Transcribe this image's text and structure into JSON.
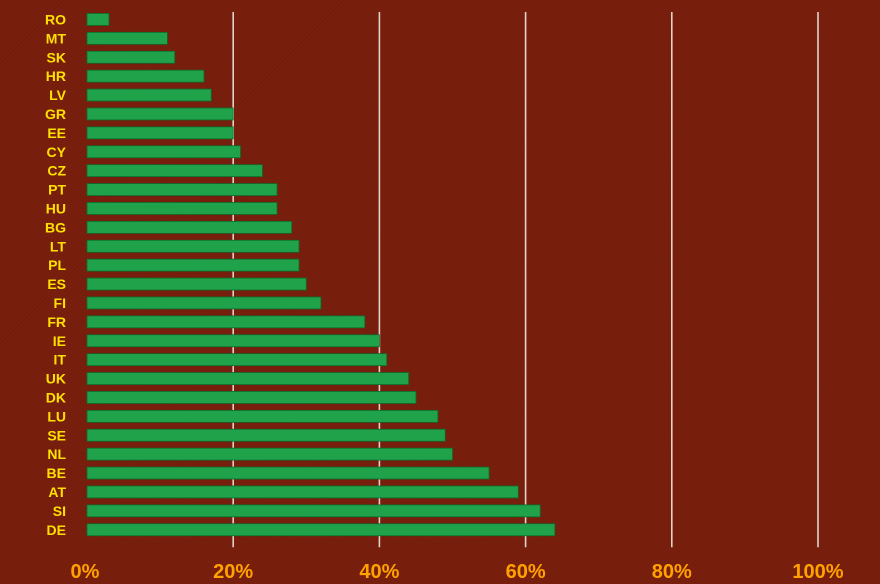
{
  "chart_data": {
    "type": "bar",
    "orientation": "horizontal",
    "categories": [
      "RO",
      "MT",
      "SK",
      "HR",
      "LV",
      "GR",
      "EE",
      "CY",
      "CZ",
      "PT",
      "HU",
      "BG",
      "LT",
      "PL",
      "ES",
      "FI",
      "FR",
      "IE",
      "IT",
      "UK",
      "DK",
      "LU",
      "SE",
      "NL",
      "BE",
      "AT",
      "SI",
      "DE"
    ],
    "series": [
      {
        "values": [
          3,
          11,
          12,
          16,
          17,
          20,
          20,
          21,
          24,
          26,
          26,
          28,
          29,
          29,
          30,
          32,
          38,
          40,
          41,
          44,
          45,
          48,
          49,
          50,
          55,
          59,
          62,
          64
        ]
      }
    ],
    "x_ticks": [
      "0%",
      "20%",
      "40%",
      "60%",
      "80%",
      "100%"
    ],
    "xlim": [
      0,
      100
    ],
    "grid": "vertical",
    "legend": "none",
    "colors": {
      "background": "#7a1f0d",
      "bar": "#1fa24a",
      "bar_edge": "#0d6b2c",
      "category_label": "#ffe000",
      "tick_label": "#ffa200",
      "gridline": "#e2d2c8"
    }
  }
}
